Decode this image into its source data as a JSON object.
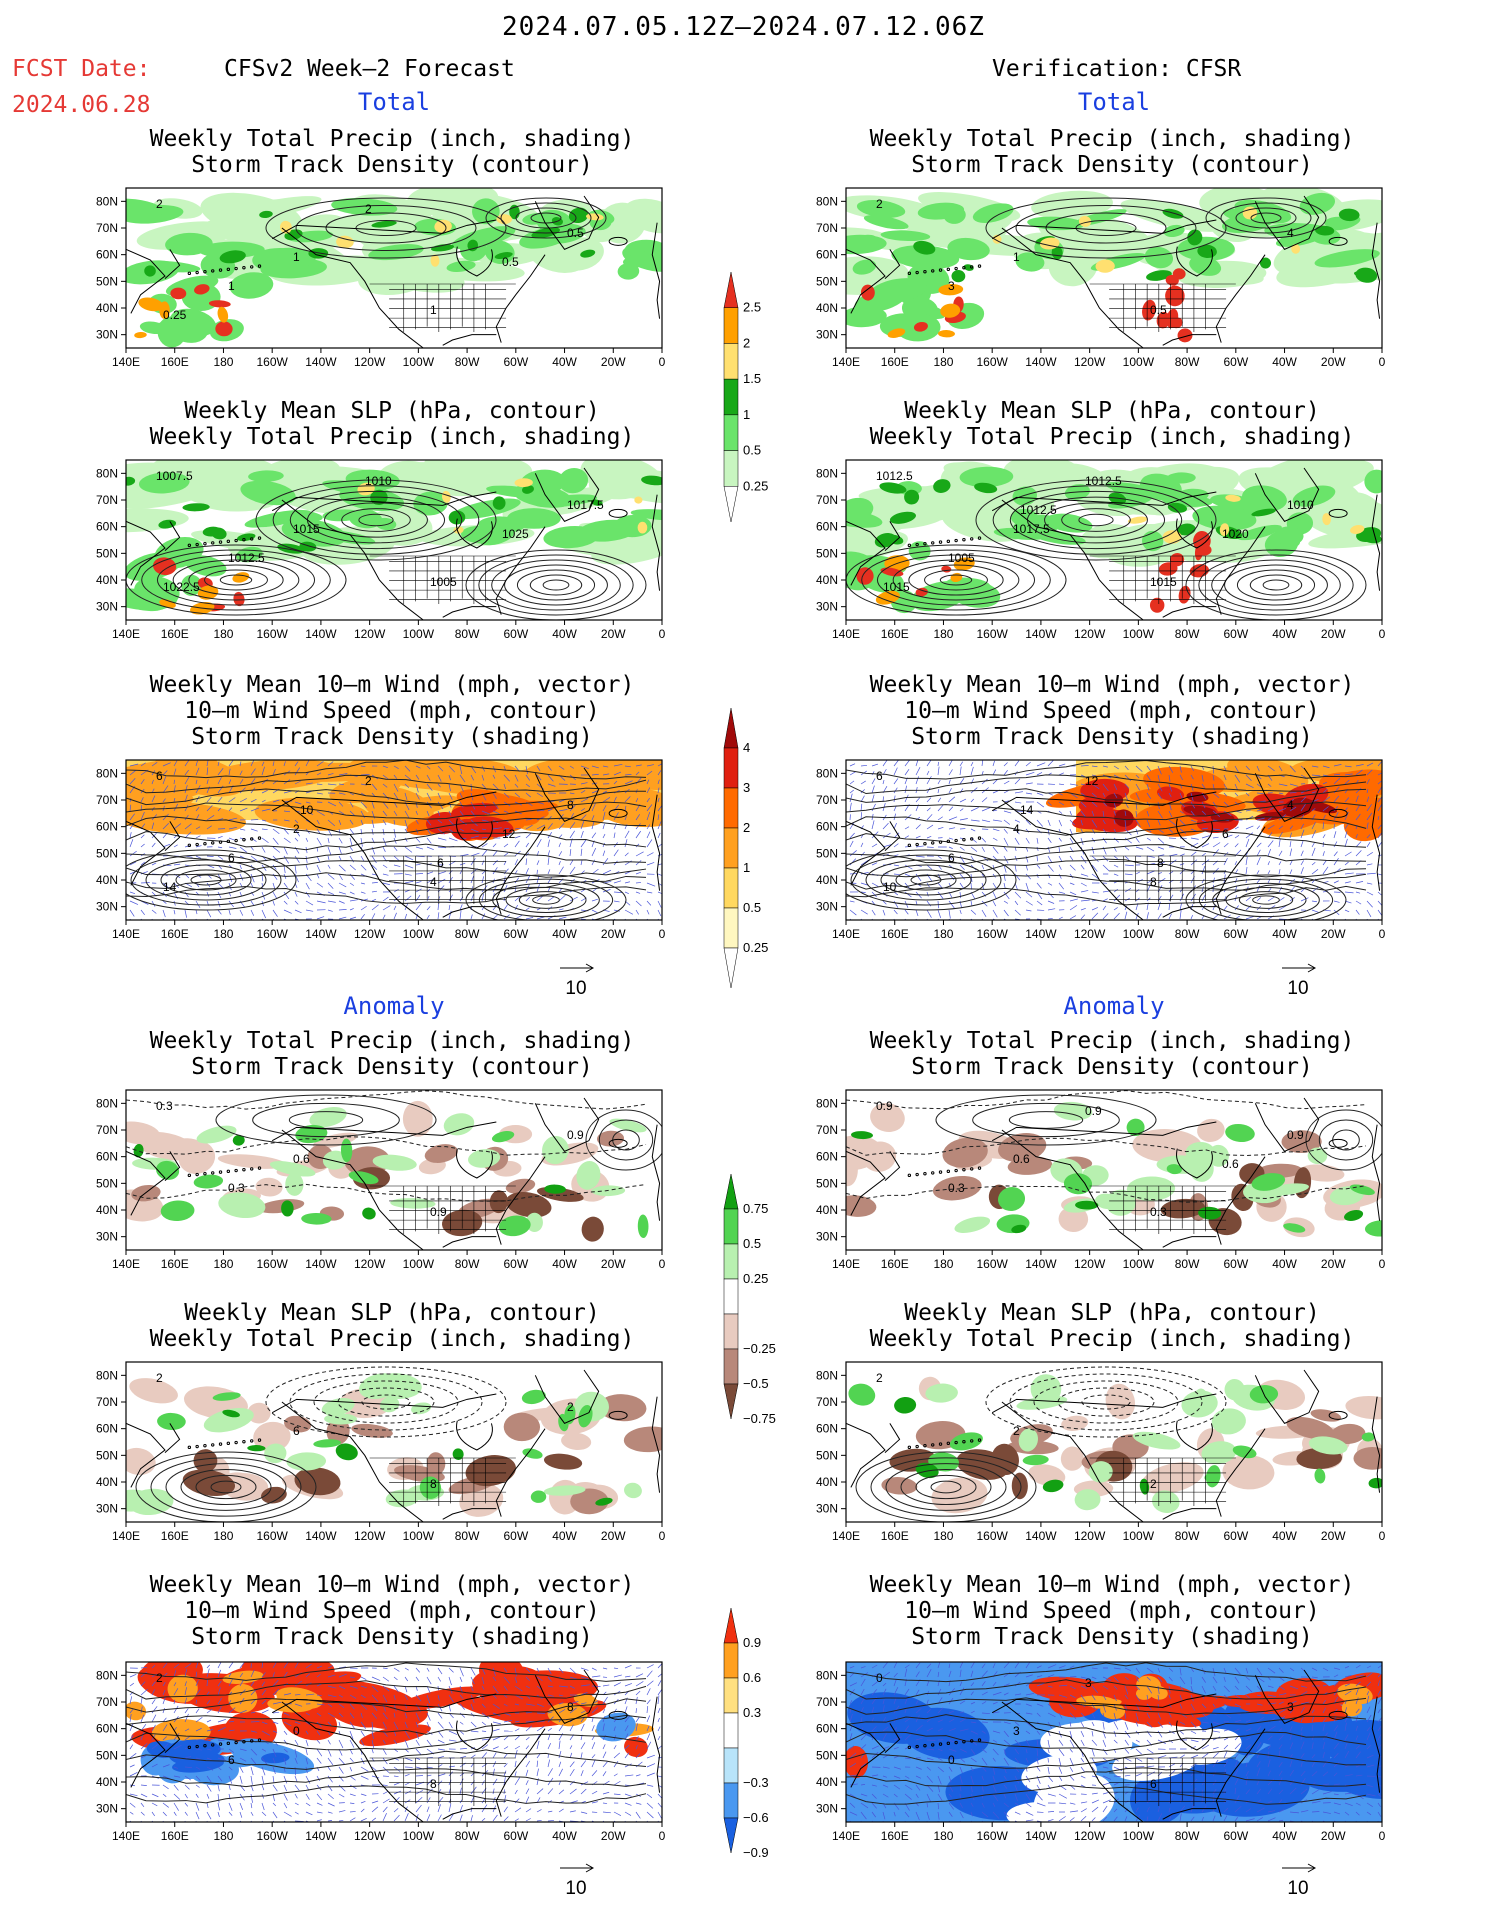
{
  "header": {
    "title": "2024.07.05.12Z—2024.07.12.06Z",
    "fcst_label": "FCST Date:",
    "fcst_date": "2024.06.28",
    "left_col": "CFSv2 Week—2 Forecast",
    "right_col": "Verification: CFSR",
    "total": "Total",
    "anomaly": "Anomaly"
  },
  "titles": {
    "precip_storm": [
      "Weekly Total Precip (inch, shading)",
      "Storm Track Density (contour)"
    ],
    "slp_precip": [
      "Weekly Mean SLP (hPa, contour)",
      "Weekly Total Precip (inch, shading)"
    ],
    "wind_storm": [
      "Weekly Mean 10—m Wind (mph, vector)",
      "10—m Wind Speed (mph, contour)",
      "Storm Track Density (shading)"
    ]
  },
  "axes": {
    "lat_labels": [
      "80N",
      "70N",
      "60N",
      "50N",
      "40N",
      "30N"
    ],
    "lon_labels": [
      "140E",
      "160E",
      "180",
      "160W",
      "140W",
      "120W",
      "100W",
      "80W",
      "60W",
      "40W",
      "20W",
      "0"
    ]
  },
  "vector_ref": "10",
  "colorbars": {
    "precip_total": [
      "0.25",
      "0.5",
      "1",
      "1.5",
      "2",
      "2.5"
    ],
    "storm_total": [
      "0.25",
      "0.5",
      "1",
      "2",
      "3",
      "4"
    ],
    "precip_anom": [
      "−0.75",
      "−0.5",
      "−0.25",
      "0.25",
      "0.5",
      "0.75"
    ],
    "storm_anom": [
      "−0.9",
      "−0.6",
      "−0.3",
      "0.3",
      "0.6",
      "0.9"
    ]
  },
  "contour_labels": {
    "f_precip": [
      "2",
      "1",
      "1",
      "0.5",
      "1",
      "2",
      "0.5",
      "0.25"
    ],
    "v_precip": [
      "2",
      "1",
      "0.5",
      "4",
      "3"
    ],
    "f_slp": [
      "1007.5",
      "1015",
      "1005",
      "1017.5",
      "1012.5",
      "1010",
      "1025",
      "1022.5"
    ],
    "v_slp": [
      "1012.5",
      "1017.5",
      "1015",
      "1010",
      "1005",
      "1012.5",
      "1020",
      "1015",
      "1012.5"
    ],
    "f_wind": [
      "6",
      "2",
      "4",
      "8",
      "6",
      "2",
      "12",
      "14",
      "10",
      "6"
    ],
    "v_wind": [
      "6",
      "4",
      "8",
      "4",
      "6",
      "12",
      "6",
      "10",
      "14",
      "8"
    ],
    "f_precip_anom": [
      "0.3",
      "0.6",
      "0.9",
      "0.9",
      "0.3"
    ],
    "v_precip_anom": [
      "0.9",
      "0.6",
      "0.3",
      "0.9",
      "0.3",
      "0.9",
      "0.6"
    ],
    "f_slp_anom": [
      "2",
      "6",
      "8",
      "2"
    ],
    "v_slp_anom": [
      "2",
      "2",
      "2"
    ],
    "f_wind_anom": [
      "2",
      "0",
      "8",
      "8",
      "6"
    ],
    "v_wind_anom": [
      "0",
      "3",
      "6",
      "3",
      "0",
      "3"
    ]
  },
  "colors": {
    "precip": [
      "#c8f5c0",
      "#6ae46a",
      "#18a818",
      "#ffe070",
      "#ffa000",
      "#e53020"
    ],
    "storm": [
      "#fff7c0",
      "#ffd860",
      "#ffa020",
      "#ff6a00",
      "#e02010",
      "#a00a0a"
    ],
    "precip_anom": [
      "#7a4a38",
      "#b8887a",
      "#e8cbc0",
      "#b8f0b0",
      "#52d452",
      "#12a012"
    ],
    "storm_anom": [
      "#1a60e0",
      "#4a98f0",
      "#b8e4fa",
      "#ffe080",
      "#ffa020",
      "#f03010"
    ],
    "title_red": "#e53935",
    "title_blue": "#1a3fe0"
  }
}
